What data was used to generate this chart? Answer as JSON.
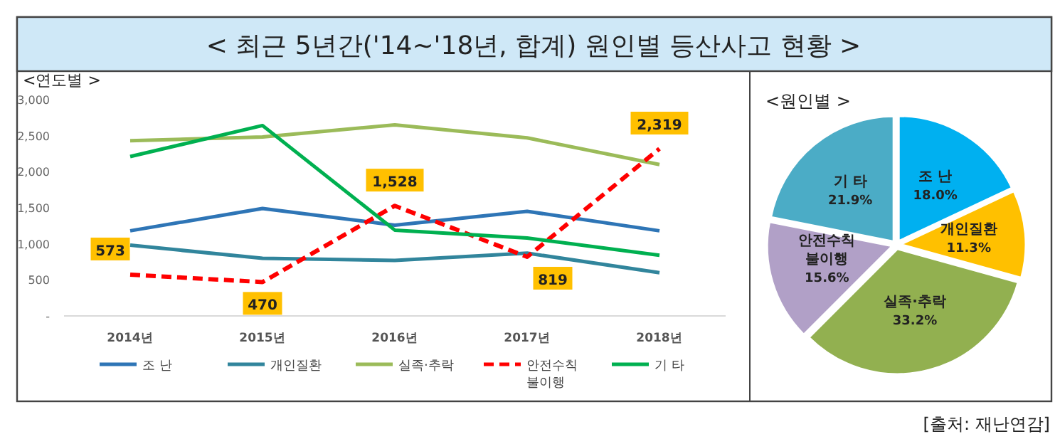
{
  "chart_data": [
    {
      "type": "line",
      "title": "< 최근 5년간('14~'18년, 합계) 원인별 등산사고 현황 >",
      "subtitle": "<연도별 >",
      "categories": [
        "2014년",
        "2015년",
        "2016년",
        "2017년",
        "2018년"
      ],
      "ylim": [
        0,
        3000
      ],
      "yticks": [
        {
          "value": 0,
          "label": "-"
        },
        500,
        {
          "value": 1000,
          "label": "1,000"
        },
        {
          "value": 1500,
          "label": "1,500"
        },
        {
          "value": 2000,
          "label": "2,000"
        },
        {
          "value": 2500,
          "label": "2,500"
        },
        {
          "value": 3000,
          "label": "3,000"
        }
      ],
      "series": [
        {
          "name": "조 난",
          "color": "#2e75b6",
          "values": [
            1180,
            1490,
            1260,
            1450,
            1180
          ]
        },
        {
          "name": "개인질환",
          "color": "#31859c",
          "values": [
            980,
            800,
            770,
            870,
            600
          ]
        },
        {
          "name": "실족·추락",
          "color": "#9bbb59",
          "values": [
            2430,
            2480,
            2650,
            2470,
            2100
          ]
        },
        {
          "name": "안전수칙 불이행",
          "color": "#ff0000",
          "line_style": "dashed",
          "values": [
            573,
            470,
            1528,
            819,
            2319
          ],
          "value_labels": [
            "573",
            "470",
            "1,528",
            "819",
            "2,319"
          ]
        },
        {
          "name": "기 타",
          "color": "#00b050",
          "values": [
            2210,
            2640,
            1190,
            1080,
            840
          ]
        }
      ],
      "legend": "bottom",
      "grid": false
    },
    {
      "type": "pie",
      "title": "<원인별 >",
      "categories": [
        "조 난",
        "개인질환",
        "실족·추락",
        "안전수칙 불이행",
        "기 타"
      ],
      "values": [
        18.0,
        11.3,
        33.2,
        15.6,
        21.9
      ],
      "colors": [
        "#00b0f0",
        "#ffc000",
        "#92b050",
        "#b1a0c7",
        "#4bacc6"
      ],
      "value_labels": [
        "18.0%",
        "11.3%",
        "33.2%",
        "15.6%",
        "21.9%"
      ],
      "annotations": [
        "[출처: 재난연감]"
      ]
    }
  ]
}
